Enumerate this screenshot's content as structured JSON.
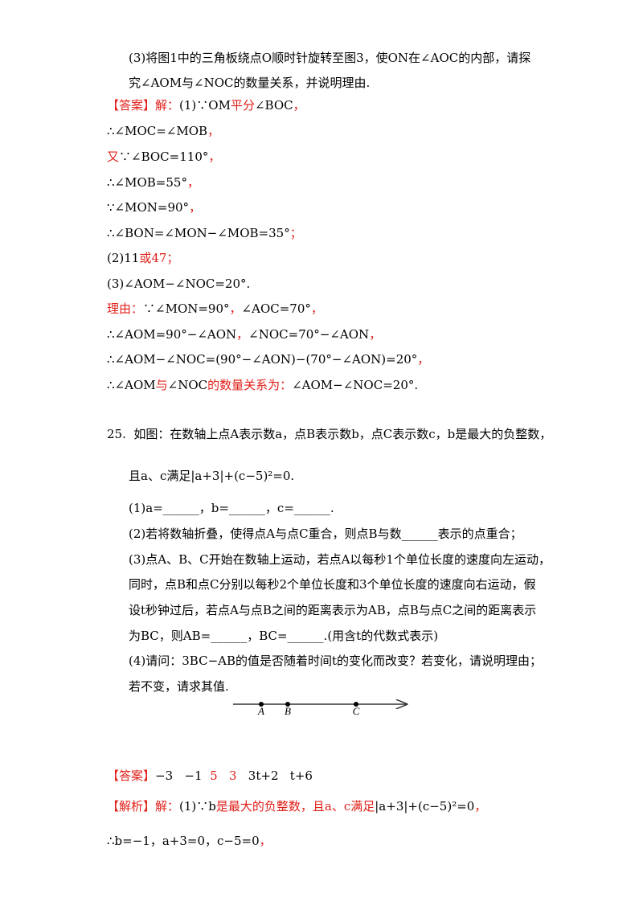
{
  "lines": [
    [
      "(3)将图1中的三角板绕点O顺时针旋转至图3，使ON在∠AOC的内部，请探"
    ],
    [
      "究∠AOM与∠NOC的数量关系，并说明理由."
    ],
    [
      "【答案】",
      "解：",
      "(1)∵OM",
      "平分",
      "∠BOC",
      "，"
    ],
    [
      "∴∠MOC=∠MOB",
      "，"
    ],
    [
      "又",
      "∵∠BOC=110°",
      "，"
    ],
    [
      "∴∠MOB=55°",
      "，"
    ],
    [
      "∵∠MON=90°",
      "，"
    ],
    [
      "∴∠BON=∠MON−∠MOB=35°",
      "；"
    ],
    [
      "(2)11",
      "或47；"
    ],
    [
      "(3)∠AOM−∠NOC=20°."
    ],
    [
      "理由：",
      "∵∠MON=90°",
      "，",
      "∠AOC=70°",
      "，"
    ],
    [
      "∴∠AOM=90°−∠AON",
      "，",
      "∠NOC=70°−∠AON",
      "，"
    ],
    [
      "∴∠AOM−∠NOC=(90°−∠AON)−(70°−∠AON)=20°",
      "，"
    ],
    [
      "∴∠AOM",
      "与",
      "∠NOC",
      "的数量关系为：",
      "∠AOM−∠NOC=20°."
    ],
    [
      "25.  如图：在数轴上点A表示数a，点B表示数b，点C表示数c，b是最大的负整数，"
    ],
    [
      "且a、c满足|a+3|+(c−5)²=0."
    ],
    [
      "(1)a=______，b=______，c=______."
    ],
    [
      "(2)若将数轴折叠，使得点A与点C重合，则点B与数______表示的点重合；"
    ],
    [
      "(3)点A、B、C开始在数轴上运动，若点A以每秒1个单位长度的速度向左运动，"
    ],
    [
      "同时，点B和点C分别以每秒2个单位长度和3个单位长度的速度向右运动，假"
    ],
    [
      "设t秒钟过后，若点A与点B之间的距离表示为AB，点B与点C之间的距离表示"
    ],
    [
      "为BC，则AB=______，BC=______.(用含t的代数式表示)"
    ],
    [
      "(4)请问：3BC−AB的值是否随着时间t的变化而改变？若变化，请说明理由；"
    ],
    [
      "若不变，请求其值."
    ],
    [
      "【答案】",
      "−3   −1  ",
      "5   3",
      "   3t+2   t+6"
    ],
    [
      "【解析】",
      "解：",
      "(1)∵b",
      "是最大的负整数，且a、c满足",
      "|a+3|+(c−5)²=0",
      "，"
    ],
    [
      "∴b=−1，a+3=0，c−5=0",
      "，"
    ]
  ],
  "number_line": {
    "labels": [
      "A",
      "B",
      "C"
    ]
  }
}
